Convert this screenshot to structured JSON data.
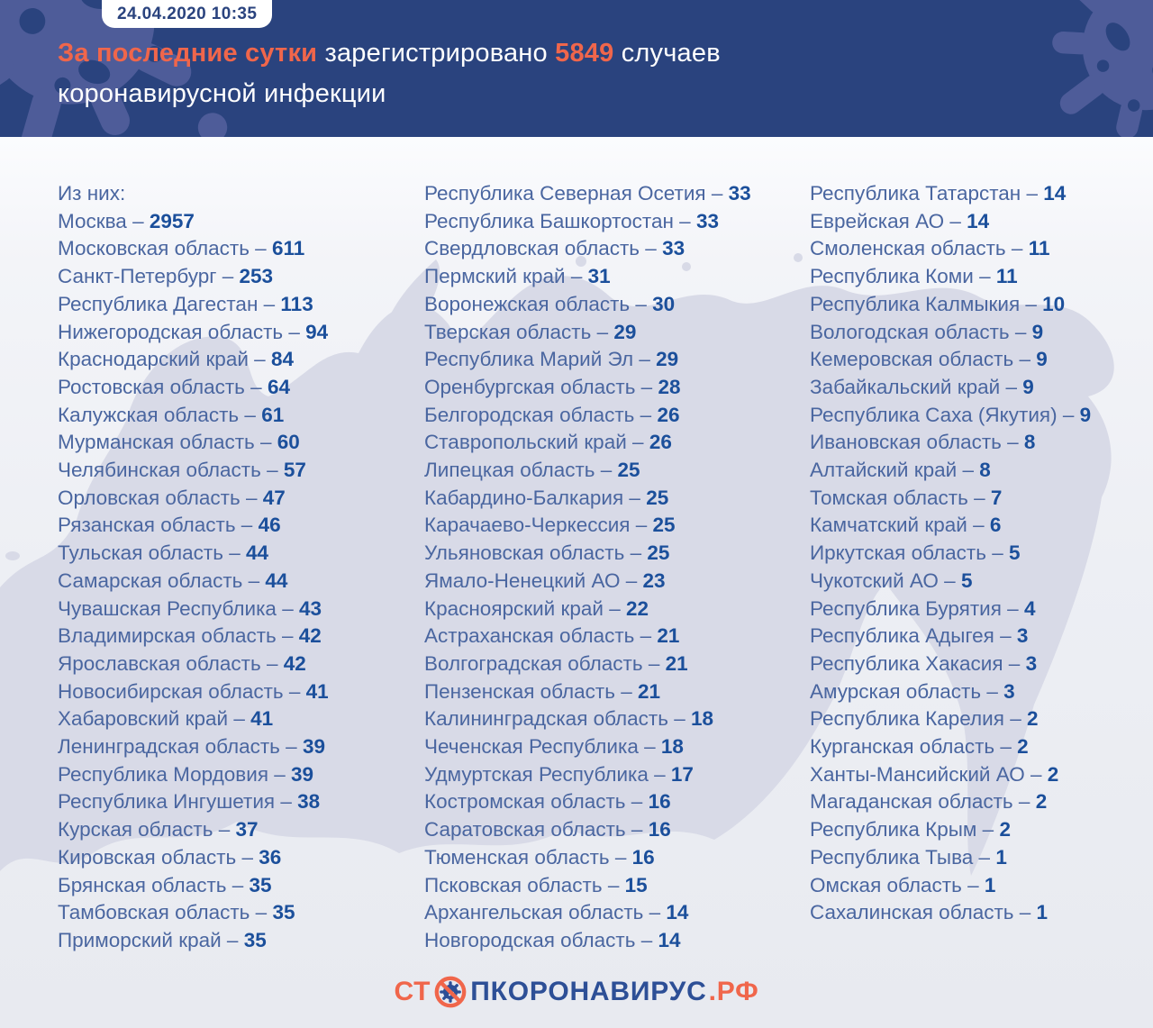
{
  "colors": {
    "header_bg": "#2A437E",
    "header_splatter": "#4E5C99",
    "accent_orange": "#F0664B",
    "region_name_blue": "#4A66A0",
    "region_value_blue": "#1B4F9B",
    "logo_blue": "#2D4F96",
    "map_silhouette": "#D8DAE7",
    "body_bg": "#EFF1F5"
  },
  "badge": {
    "datetime": "24.04.2020 10:35"
  },
  "headline": {
    "highlight": "За последние сутки",
    "middle": "зарегистрировано",
    "count": "5849",
    "tail": "случаев",
    "line2": "коронавирусной инфекции"
  },
  "list_intro": "Из них:",
  "separator": " – ",
  "chart_data": {
    "type": "table",
    "title": "За последние сутки зарегистрировано 5849 случаев коронавирусной инфекции",
    "date": "24.04.2020 10:35",
    "total_new_cases": 5849,
    "columns": [
      [
        {
          "name": "Москва",
          "value": 2957
        },
        {
          "name": "Московская область",
          "value": 611
        },
        {
          "name": "Санкт-Петербург",
          "value": 253
        },
        {
          "name": "Республика Дагестан",
          "value": 113
        },
        {
          "name": "Нижегородская область",
          "value": 94
        },
        {
          "name": "Краснодарский край",
          "value": 84
        },
        {
          "name": "Ростовская область",
          "value": 64
        },
        {
          "name": "Калужская область",
          "value": 61
        },
        {
          "name": "Мурманская область",
          "value": 60
        },
        {
          "name": "Челябинская область",
          "value": 57
        },
        {
          "name": "Орловская область",
          "value": 47
        },
        {
          "name": "Рязанская область",
          "value": 46
        },
        {
          "name": "Тульская область",
          "value": 44
        },
        {
          "name": "Самарская область",
          "value": 44
        },
        {
          "name": "Чувашская Республика",
          "value": 43
        },
        {
          "name": "Владимирская область",
          "value": 42
        },
        {
          "name": "Ярославская область",
          "value": 42
        },
        {
          "name": "Новосибирская область",
          "value": 41
        },
        {
          "name": "Хабаровский край",
          "value": 41
        },
        {
          "name": "Ленинградская область",
          "value": 39
        },
        {
          "name": "Республика Мордовия",
          "value": 39
        },
        {
          "name": "Республика Ингушетия",
          "value": 38
        },
        {
          "name": "Курская область",
          "value": 37
        },
        {
          "name": "Кировская область",
          "value": 36
        },
        {
          "name": "Брянская область",
          "value": 35
        },
        {
          "name": "Тамбовская область",
          "value": 35
        },
        {
          "name": "Приморский край",
          "value": 35
        }
      ],
      [
        {
          "name": "Республика Северная Осетия",
          "value": 33
        },
        {
          "name": "Республика Башкортостан",
          "value": 33
        },
        {
          "name": "Свердловская область",
          "value": 33
        },
        {
          "name": "Пермский край",
          "value": 31
        },
        {
          "name": "Воронежская область",
          "value": 30
        },
        {
          "name": "Тверская область",
          "value": 29
        },
        {
          "name": "Республика Марий Эл",
          "value": 29
        },
        {
          "name": "Оренбургская область",
          "value": 28
        },
        {
          "name": "Белгородская область",
          "value": 26
        },
        {
          "name": "Ставропольский край",
          "value": 26
        },
        {
          "name": "Липецкая область",
          "value": 25
        },
        {
          "name": "Кабардино-Балкария",
          "value": 25
        },
        {
          "name": "Карачаево-Черкессия",
          "value": 25
        },
        {
          "name": "Ульяновская область",
          "value": 25
        },
        {
          "name": "Ямало-Ненецкий АО",
          "value": 23
        },
        {
          "name": "Красноярский край",
          "value": 22
        },
        {
          "name": "Астраханская область",
          "value": 21
        },
        {
          "name": "Волгоградская область",
          "value": 21
        },
        {
          "name": "Пензенская область",
          "value": 21
        },
        {
          "name": "Калининградская область",
          "value": 18
        },
        {
          "name": "Чеченская Республика",
          "value": 18
        },
        {
          "name": "Удмуртская Республика",
          "value": 17
        },
        {
          "name": "Костромская область",
          "value": 16
        },
        {
          "name": "Саратовская область",
          "value": 16
        },
        {
          "name": "Тюменская область",
          "value": 16
        },
        {
          "name": "Псковская область",
          "value": 15
        },
        {
          "name": "Архангельская область",
          "value": 14
        },
        {
          "name": "Новгородская область",
          "value": 14
        }
      ],
      [
        {
          "name": "Республика Татарстан",
          "value": 14
        },
        {
          "name": "Еврейская АО",
          "value": 14
        },
        {
          "name": "Смоленская область",
          "value": 11
        },
        {
          "name": "Республика Коми",
          "value": 11
        },
        {
          "name": "Республика Калмыкия",
          "value": 10
        },
        {
          "name": "Вологодская область",
          "value": 9
        },
        {
          "name": "Кемеровская область",
          "value": 9
        },
        {
          "name": "Забайкальский край",
          "value": 9
        },
        {
          "name": "Республика Саха (Якутия)",
          "value": 9
        },
        {
          "name": "Ивановская область",
          "value": 8
        },
        {
          "name": "Алтайский край",
          "value": 8
        },
        {
          "name": "Томская область",
          "value": 7
        },
        {
          "name": "Камчатский край",
          "value": 6
        },
        {
          "name": "Иркутская область",
          "value": 5
        },
        {
          "name": "Чукотский АО",
          "value": 5
        },
        {
          "name": "Республика Бурятия",
          "value": 4
        },
        {
          "name": "Республика Адыгея",
          "value": 3
        },
        {
          "name": "Республика Хакасия",
          "value": 3
        },
        {
          "name": "Амурская область",
          "value": 3
        },
        {
          "name": "Республика Карелия",
          "value": 2
        },
        {
          "name": "Курганская область",
          "value": 2
        },
        {
          "name": "Ханты-Мансийский АО",
          "value": 2
        },
        {
          "name": "Магаданская область",
          "value": 2
        },
        {
          "name": "Республика Крым",
          "value": 2
        },
        {
          "name": "Республика Тыва",
          "value": 1
        },
        {
          "name": "Омская область",
          "value": 1
        },
        {
          "name": "Сахалинская область",
          "value": 1
        }
      ]
    ]
  },
  "logo": {
    "prefix": "СТ",
    "icon": "no-virus-icon",
    "middle": "ПКОРОНАВИРУС",
    "suffix": ".РФ"
  }
}
